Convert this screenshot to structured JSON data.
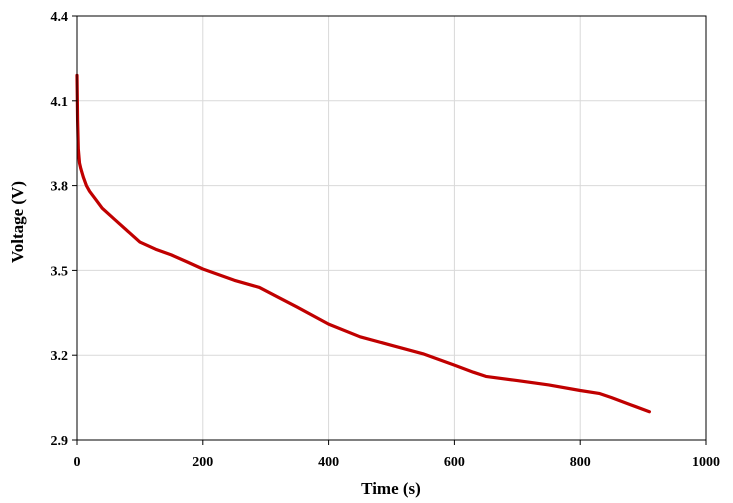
{
  "chart_data": {
    "type": "line",
    "title": "",
    "xlabel": "Time (s)",
    "ylabel": "Voltage (V)",
    "xlim": [
      0,
      1000
    ],
    "ylim": [
      2.9,
      4.4
    ],
    "x_ticks": [
      0,
      200,
      400,
      600,
      800,
      1000
    ],
    "y_ticks": [
      2.9,
      3.2,
      3.5,
      3.8,
      4.1,
      4.4
    ],
    "x_tick_labels": [
      "0",
      "200",
      "400",
      "600",
      "800",
      "1000"
    ],
    "y_tick_labels": [
      "2.9",
      "3.2",
      "3.5",
      "3.8",
      "4.1",
      "4.4"
    ],
    "grid": true,
    "legend": "none",
    "series": [
      {
        "color": "#c00000",
        "x": [
          0,
          1,
          2,
          4,
          6,
          10,
          15,
          20,
          30,
          40,
          60,
          80,
          100,
          125,
          150,
          175,
          200,
          250,
          290,
          320,
          350,
          400,
          450,
          500,
          550,
          600,
          630,
          650,
          700,
          750,
          800,
          830,
          850,
          880,
          910
        ],
        "y": [
          4.19,
          4.03,
          3.93,
          3.88,
          3.86,
          3.83,
          3.8,
          3.78,
          3.75,
          3.72,
          3.68,
          3.64,
          3.6,
          3.575,
          3.555,
          3.53,
          3.505,
          3.465,
          3.44,
          3.405,
          3.37,
          3.31,
          3.265,
          3.235,
          3.205,
          3.165,
          3.14,
          3.125,
          3.11,
          3.095,
          3.075,
          3.065,
          3.05,
          3.025,
          3.0
        ]
      }
    ]
  }
}
